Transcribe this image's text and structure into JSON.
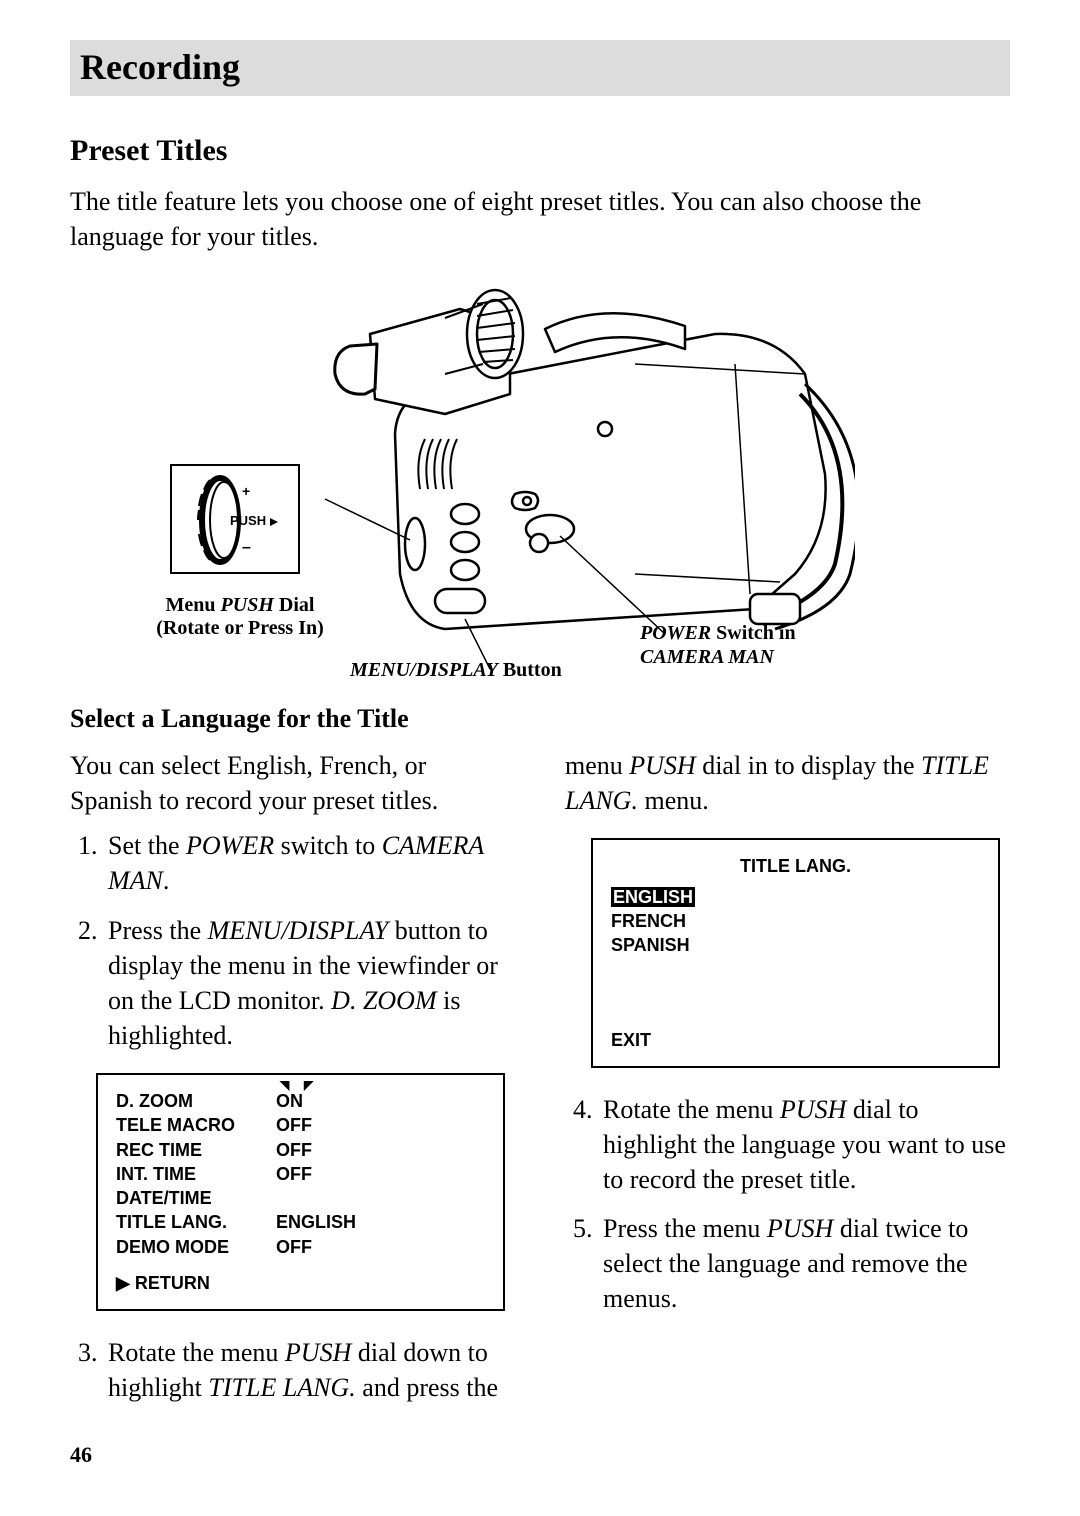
{
  "header": "Recording",
  "section_title": "Preset Titles",
  "intro": "The title feature lets you choose one of eight preset titles.  You can also choose the language for your titles.",
  "figure": {
    "push_dial_label_pre": "Menu ",
    "push_dial_label_ital": "PUSH",
    "push_dial_label_post": " Dial",
    "push_dial_sub": "(Rotate or Press In)",
    "push_text": "PUSH",
    "menu_display_ital": "MENU/DISPLAY",
    "menu_display_post": " Button",
    "power_ital": "POWER",
    "power_post": " Switch in",
    "power_line2": "CAMERA MAN"
  },
  "subhead": "Select a Language for the Title",
  "left": {
    "para": "You can select English, French, or Spanish to record your preset titles.",
    "step1_a": "Set the ",
    "step1_b": "POWER",
    "step1_c": " switch to ",
    "step1_d": "CAMERA MAN",
    "step1_e": ".",
    "step2_a": "Press the ",
    "step2_b": "MENU/DISPLAY",
    "step2_c": " button to display the menu in the viewfinder or on the LCD monitor.  ",
    "step2_d": "D. ZOOM",
    "step2_e": " is highlighted.",
    "step3_a": "Rotate the menu ",
    "step3_b": "PUSH",
    "step3_c": " dial down to highlight ",
    "step3_d": "TITLE LANG.",
    "step3_e": " and press the"
  },
  "right": {
    "cont_a": "menu ",
    "cont_b": "PUSH",
    "cont_c": " dial in to display the ",
    "cont_d": "TITLE LANG.",
    "cont_e": " menu.",
    "step4_a": "Rotate the menu ",
    "step4_b": "PUSH",
    "step4_c": " dial to highlight the language you want to use to record the preset title.",
    "step5_a": "Press the menu ",
    "step5_b": "PUSH",
    "step5_c": " dial twice to select the language and remove the menus."
  },
  "lcd1": {
    "rows": [
      {
        "k": "D. ZOOM",
        "v": "ON",
        "hi": true
      },
      {
        "k": "TELE MACRO",
        "v": "OFF"
      },
      {
        "k": "REC TIME",
        "v": "OFF"
      },
      {
        "k": "INT. TIME",
        "v": "OFF"
      },
      {
        "k": "DATE/TIME",
        "v": ""
      },
      {
        "k": "TITLE LANG.",
        "v": "ENGLISH"
      },
      {
        "k": "DEMO MODE",
        "v": "OFF"
      }
    ],
    "return": "RETURN"
  },
  "lcd2": {
    "title": "TITLE LANG.",
    "items": [
      "ENGLISH",
      "FRENCH",
      "SPANISH"
    ],
    "exit": "EXIT"
  },
  "page_number": "46",
  "colors": {
    "band": "#dcdcdc"
  }
}
